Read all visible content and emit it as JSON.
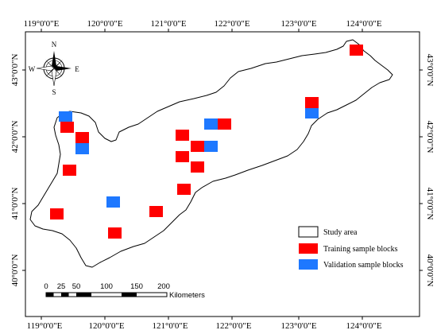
{
  "map": {
    "top_lon_labels": [
      "119°0'0\"E",
      "120°0'0\"E",
      "121°0'0\"E",
      "122°0'0\"E",
      "123°0'0\"E",
      "124°0'0\"E"
    ],
    "bottom_lon_labels": [
      "119°0'0\"E",
      "120°0'0\"E",
      "121°0'0\"E",
      "122°0'0\"E",
      "123°0'0\"E",
      "124°0'0\"E"
    ],
    "left_lat_labels": [
      "43°0'0\"N",
      "42°0'0\"N",
      "41°0'0\"N",
      "40°0'0\"N"
    ],
    "right_lat_labels": [
      "43°0'0\"N",
      "42°0'0\"N",
      "41°0'0\"N",
      "40°0'0\"N"
    ]
  },
  "compass": {
    "n": "N",
    "s": "S",
    "e": "E",
    "w": "W"
  },
  "legend": {
    "items": [
      {
        "label": "Study area",
        "color": "#ffffff"
      },
      {
        "label": "Training sample blocks",
        "color": "#ff0000"
      },
      {
        "label": "Validation sample blocks",
        "color": "#1e78ff"
      }
    ]
  },
  "scale_bar": {
    "ticks": [
      "0",
      "25",
      "50",
      "100",
      "150",
      "200"
    ],
    "unit": "Kilometers"
  },
  "colors": {
    "training": "#ff0000",
    "validation": "#1e78ff"
  }
}
